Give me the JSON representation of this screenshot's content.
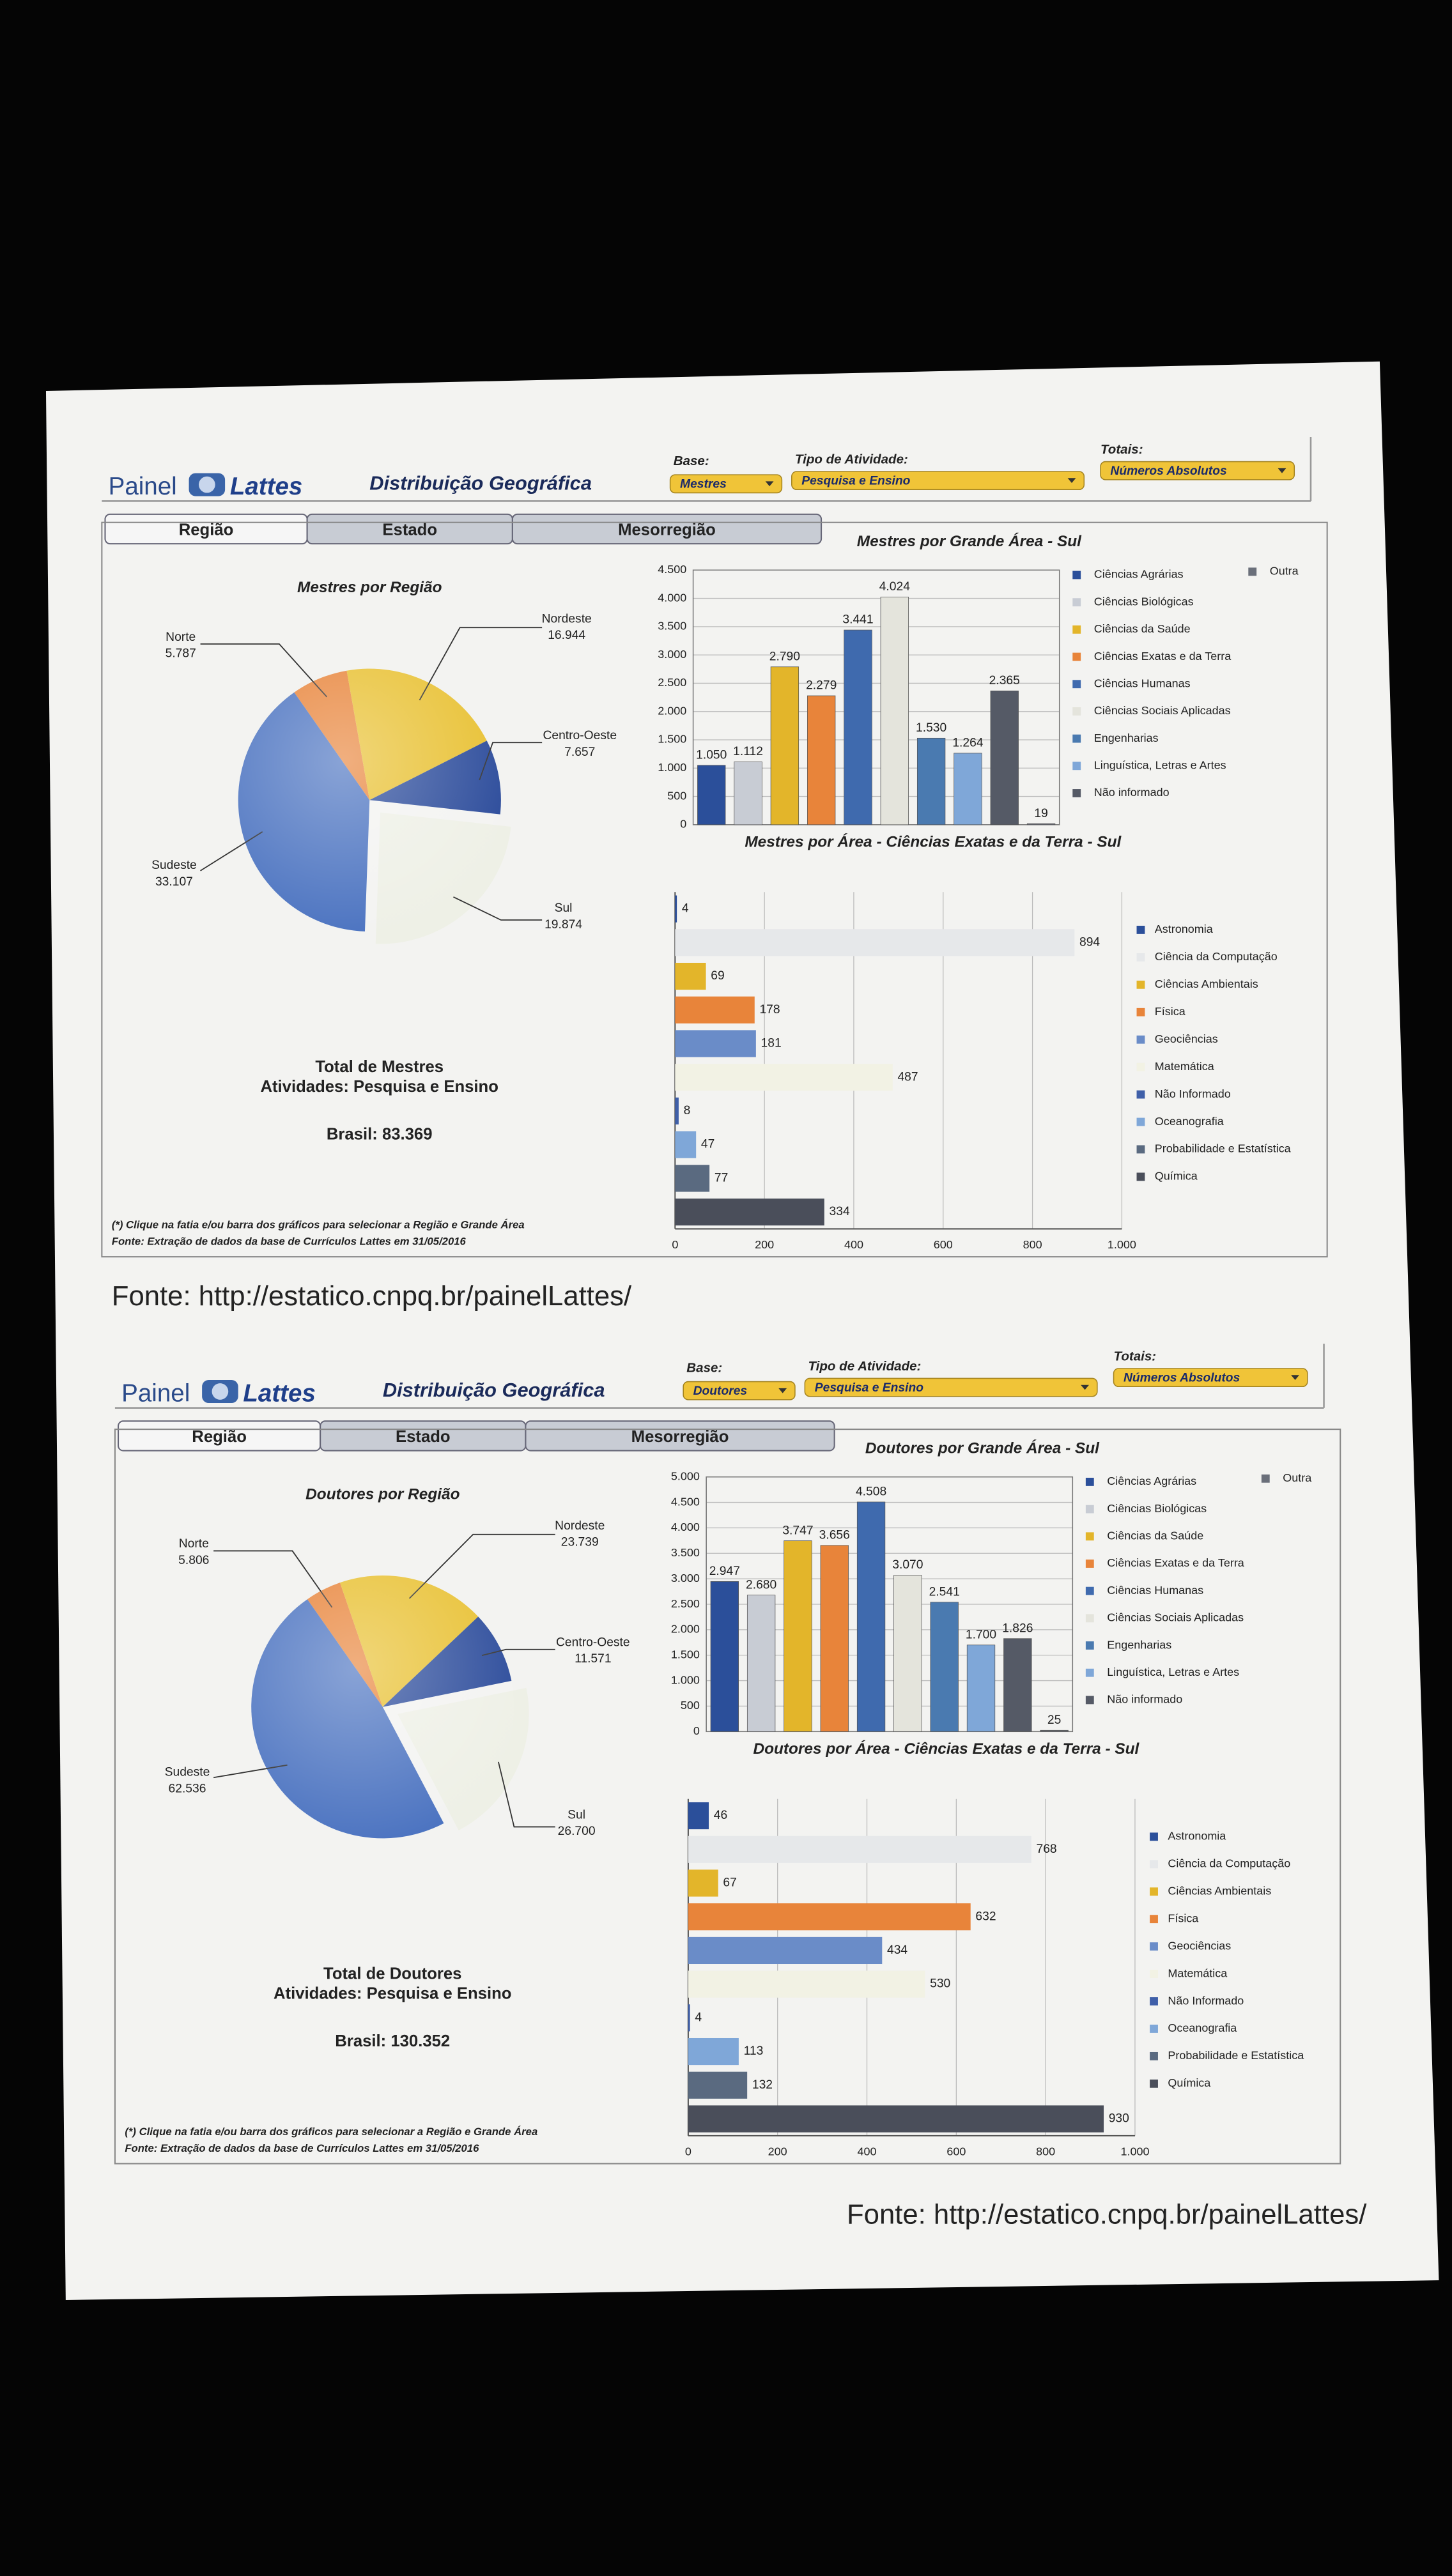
{
  "panels": [
    {
      "logo": "Painel",
      "logo2": "Lattes",
      "title": "Distribuição Geográfica",
      "base_label": "Base:",
      "base": "Mestres",
      "activity_label": "Tipo de Atividade:",
      "activity": "Pesquisa e Ensino",
      "totals_label": "Totais:",
      "totals": "Números Absolutos",
      "tabs": [
        "Região",
        "Estado",
        "Mesorregião"
      ],
      "summary": [
        "Total de Mestres",
        "Atividades: Pesquisa e Ensino",
        "Brasil: 83.369"
      ],
      "notes": [
        "(*) Clique na fatia e/ou barra dos gráficos para selecionar a Região e Grande Área",
        "Fonte: Extração de dados da base de Currículos Lattes em 31/05/2016"
      ],
      "source": "Fonte: http://estatico.cnpq.br/painelLattes/"
    },
    {
      "logo": "Painel",
      "logo2": "Lattes",
      "title": "Distribuição Geográfica",
      "base_label": "Base:",
      "base": "Doutores",
      "activity_label": "Tipo de Atividade:",
      "activity": "Pesquisa e Ensino",
      "totals_label": "Totais:",
      "totals": "Números Absolutos",
      "tabs": [
        "Região",
        "Estado",
        "Mesorregião"
      ],
      "summary": [
        "Total de Doutores",
        "Atividades: Pesquisa e Ensino",
        "Brasil: 130.352"
      ],
      "notes": [
        "(*) Clique na fatia e/ou barra dos gráficos para selecionar a Região e Grande Área",
        "Fonte: Extração de dados da base de Currículos Lattes em 31/05/2016"
      ],
      "source": "Fonte: http://estatico.cnpq.br/painelLattes/"
    }
  ],
  "chart_data": [
    {
      "type": "pie",
      "title": "Mestres por Região",
      "categories": [
        "Norte",
        "Nordeste",
        "Centro-Oeste",
        "Sul",
        "Sudeste"
      ],
      "values": [
        5787,
        16944,
        7657,
        19874,
        33107
      ],
      "value_labels": [
        "5.787",
        "16.944",
        "7.657",
        "19.874",
        "33.107"
      ],
      "colors": [
        "#e8843a",
        "#e8c030",
        "#2a4a9a",
        "#eef0e6",
        "#4a72c0"
      ]
    },
    {
      "type": "bar",
      "title": "Mestres por Grande Área - Sul",
      "categories": [
        "Ciências Agrárias",
        "Ciências Biológicas",
        "Ciências da Saúde",
        "Ciências Exatas e da Terra",
        "Ciências Humanas",
        "Ciências Sociais Aplicadas",
        "Engenharias",
        "Linguística, Letras e Artes",
        "Não informado",
        "Outra"
      ],
      "values": [
        1050,
        1112,
        2790,
        2279,
        3441,
        4024,
        1530,
        1264,
        2365,
        19
      ],
      "value_labels": [
        "1.050",
        "1.112",
        "2.790",
        "2.279",
        "3.441",
        "4.024",
        "1.530",
        "1.264",
        "2.365",
        "19"
      ],
      "colors": [
        "#2b4f9a",
        "#c8ccd4",
        "#e3b52a",
        "#e8843a",
        "#3f6aae",
        "#e4e4dc",
        "#4a7ab0",
        "#7fa7d8",
        "#555a66",
        "#6a6f7a"
      ],
      "ylim": [
        0,
        4500
      ],
      "yticks": [
        0,
        500,
        {
          "value": 1000,
          "label": "1.000"
        },
        {
          "value": 1500,
          "label": "1.500"
        },
        {
          "value": 2000,
          "label": "2.000"
        },
        {
          "value": 2500,
          "label": "2.500"
        },
        {
          "value": 3000,
          "label": "3.000"
        },
        {
          "value": 3500,
          "label": "3.500"
        },
        {
          "value": 4000,
          "label": "4.000"
        },
        {
          "value": 4500,
          "label": "4.500"
        }
      ],
      "grid": true
    },
    {
      "type": "barh",
      "title": "Mestres por Área - Ciências Exatas e da Terra - Sul",
      "categories": [
        "Astronomia",
        "Ciência da Computação",
        "Ciências Ambientais",
        "Física",
        "Geociências",
        "Matemática",
        "Não Informado",
        "Oceanografia",
        "Probabilidade e Estatística",
        "Química"
      ],
      "values": [
        4,
        894,
        69,
        178,
        181,
        487,
        8,
        47,
        77,
        334
      ],
      "colors": [
        "#2b4f9a",
        "#e6e8ea",
        "#e3b52a",
        "#e8843a",
        "#6a8cc8",
        "#f2f2e4",
        "#3f5fa8",
        "#7fa7d8",
        "#5a6a80",
        "#4a4e5a"
      ],
      "xlim": [
        0,
        1000
      ],
      "xticks": [
        0,
        200,
        400,
        600,
        800,
        {
          "value": 1000,
          "label": "1.000"
        }
      ],
      "grid": true
    },
    {
      "type": "pie",
      "title": "Doutores por Região",
      "categories": [
        "Norte",
        "Nordeste",
        "Centro-Oeste",
        "Sul",
        "Sudeste"
      ],
      "values": [
        5806,
        23739,
        11571,
        26700,
        62536
      ],
      "value_labels": [
        "5.806",
        "23.739",
        "11.571",
        "26.700",
        "62.536"
      ],
      "colors": [
        "#e8843a",
        "#e8c030",
        "#2a4a9a",
        "#eef0e6",
        "#4a72c0"
      ]
    },
    {
      "type": "bar",
      "title": "Doutores por Grande Área - Sul",
      "categories": [
        "Ciências Agrárias",
        "Ciências Biológicas",
        "Ciências da Saúde",
        "Ciências Exatas e da Terra",
        "Ciências Humanas",
        "Ciências Sociais Aplicadas",
        "Engenharias",
        "Linguística, Letras e Artes",
        "Não informado",
        "Outra"
      ],
      "values": [
        2947,
        2680,
        3747,
        3656,
        4508,
        3070,
        2541,
        1700,
        1826,
        25
      ],
      "value_labels": [
        "2.947",
        "2.680",
        "3.747",
        "3.656",
        "4.508",
        "3.070",
        "2.541",
        "1.700",
        "1.826",
        "25"
      ],
      "colors": [
        "#2b4f9a",
        "#c8ccd4",
        "#e3b52a",
        "#e8843a",
        "#3f6aae",
        "#e4e4dc",
        "#4a7ab0",
        "#7fa7d8",
        "#555a66",
        "#6a6f7a"
      ],
      "ylim": [
        0,
        5000
      ],
      "yticks": [
        0,
        500,
        {
          "value": 1000,
          "label": "1.000"
        },
        {
          "value": 1500,
          "label": "1.500"
        },
        {
          "value": 2000,
          "label": "2.000"
        },
        {
          "value": 2500,
          "label": "2.500"
        },
        {
          "value": 3000,
          "label": "3.000"
        },
        {
          "value": 3500,
          "label": "3.500"
        },
        {
          "value": 4000,
          "label": "4.000"
        },
        {
          "value": 4500,
          "label": "4.500"
        },
        {
          "value": 5000,
          "label": "5.000"
        }
      ],
      "grid": true
    },
    {
      "type": "barh",
      "title": "Doutores por Área - Ciências Exatas e da Terra - Sul",
      "categories": [
        "Astronomia",
        "Ciência da Computação",
        "Ciências Ambientais",
        "Física",
        "Geociências",
        "Matemática",
        "Não Informado",
        "Oceanografia",
        "Probabilidade e Estatística",
        "Química"
      ],
      "values": [
        46,
        768,
        67,
        632,
        434,
        530,
        4,
        113,
        132,
        930
      ],
      "colors": [
        "#2b4f9a",
        "#e6e8ea",
        "#e3b52a",
        "#e8843a",
        "#6a8cc8",
        "#f2f2e4",
        "#3f5fa8",
        "#7fa7d8",
        "#5a6a80",
        "#4a4e5a"
      ],
      "xlim": [
        0,
        1000
      ],
      "xticks": [
        0,
        200,
        400,
        600,
        800,
        {
          "value": 1000,
          "label": "1.000"
        }
      ],
      "grid": true
    }
  ]
}
